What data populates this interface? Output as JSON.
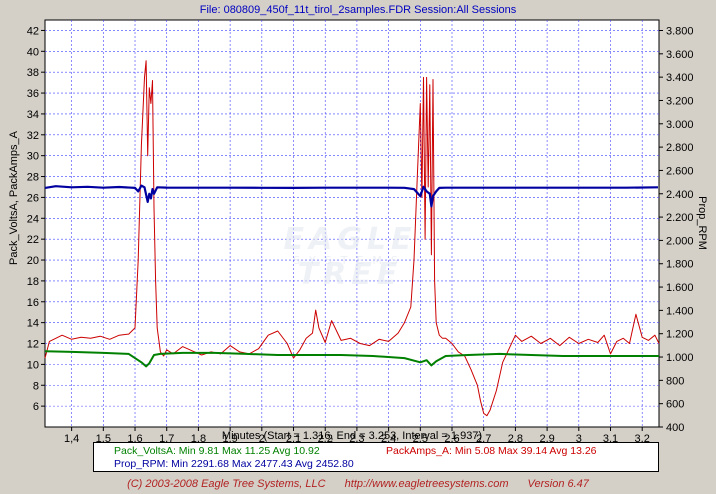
{
  "window_title": "File: 080809_450f_11t_tirol_2samples.FDR   Session:All Sessions",
  "x_axis_title": "Minutes (Start = 1.316,  End = 3.253,  Interval = 1.937)",
  "left_axis_title": "Pack_VoltsA, PackAmps_A",
  "right_axis_title": "Prop_RPM",
  "watermark": {
    "line1": "EAGLE TREE",
    "line2": "SYSTEMS"
  },
  "legend": {
    "volts": "Pack_VoltsA:  Min 9.81   Max 11.25   Avg 10.92",
    "amps": "PackAmps_A:   Min 5.08   Max 39.14   Avg 13.26",
    "rpm": "Prop_RPM:  Min 2291.68   Max 2477.43   Avg 2452.80"
  },
  "footer": {
    "copyright": "(C) 2003-2008 Eagle Tree Systems, LLC",
    "url": "http://www.eagletreesystems.com",
    "version": "Version 6.47"
  },
  "colors": {
    "amps": "#cc0000",
    "volts": "#008000",
    "rpm": "#0000a0",
    "title": "#0000c0"
  },
  "chart_data": {
    "type": "line",
    "x_ticks": [
      "1,4",
      "1,5",
      "1,6",
      "1,7",
      "1,8",
      "1,9",
      "2",
      "2,1",
      "2,2",
      "2,3",
      "2,4",
      "2,5",
      "2,6",
      "2,7",
      "2,8",
      "2,9",
      "3",
      "3,1",
      "3,2"
    ],
    "x_tick_values": [
      1.4,
      1.5,
      1.6,
      1.7,
      1.8,
      1.9,
      2.0,
      2.1,
      2.2,
      2.3,
      2.4,
      2.5,
      2.6,
      2.7,
      2.8,
      2.9,
      3.0,
      3.1,
      3.2
    ],
    "xlim": [
      1.316,
      3.253
    ],
    "y_left_ticks": [
      "6",
      "8",
      "10",
      "12",
      "14",
      "16",
      "18",
      "20",
      "22",
      "24",
      "26",
      "28",
      "30",
      "32",
      "34",
      "36",
      "38",
      "40",
      "42"
    ],
    "ylim_left": [
      4,
      43
    ],
    "y_right_ticks": [
      "400",
      "600",
      "800",
      "1.000",
      "1.200",
      "1.400",
      "1.600",
      "1.800",
      "2.000",
      "2.200",
      "2.400",
      "2.600",
      "2.800",
      "3.000",
      "3.200",
      "3.400",
      "3.600",
      "3.800"
    ],
    "y_right_tick_values": [
      400,
      600,
      800,
      1000,
      1200,
      1400,
      1600,
      1800,
      2000,
      2200,
      2400,
      2600,
      2800,
      3000,
      3200,
      3400,
      3600,
      3800
    ],
    "ylim_right": [
      400,
      3890
    ],
    "grid": true,
    "series": [
      {
        "name": "PackAmps_A",
        "axis": "left",
        "x": [
          1.316,
          1.33,
          1.35,
          1.37,
          1.4,
          1.43,
          1.46,
          1.49,
          1.52,
          1.55,
          1.58,
          1.6,
          1.61,
          1.62,
          1.63,
          1.635,
          1.64,
          1.645,
          1.65,
          1.655,
          1.66,
          1.665,
          1.67,
          1.68,
          1.69,
          1.7,
          1.72,
          1.75,
          1.78,
          1.81,
          1.84,
          1.87,
          1.9,
          1.93,
          1.96,
          1.99,
          2.02,
          2.05,
          2.08,
          2.1,
          2.12,
          2.14,
          2.16,
          2.17,
          2.18,
          2.2,
          2.22,
          2.25,
          2.28,
          2.31,
          2.34,
          2.37,
          2.4,
          2.43,
          2.45,
          2.47,
          2.48,
          2.49,
          2.5,
          2.505,
          2.51,
          2.515,
          2.52,
          2.525,
          2.53,
          2.535,
          2.54,
          2.545,
          2.55,
          2.56,
          2.57,
          2.58,
          2.6,
          2.62,
          2.64,
          2.66,
          2.68,
          2.69,
          2.7,
          2.71,
          2.72,
          2.74,
          2.76,
          2.78,
          2.8,
          2.82,
          2.85,
          2.88,
          2.91,
          2.94,
          2.97,
          3.0,
          3.03,
          3.06,
          3.08,
          3.1,
          3.12,
          3.14,
          3.16,
          3.18,
          3.2,
          3.22,
          3.24,
          3.253
        ],
        "y": [
          10.6,
          12.2,
          12.5,
          12.8,
          12.4,
          12.6,
          12.5,
          12.7,
          12.4,
          12.8,
          12.9,
          13.5,
          20.0,
          31.0,
          37.5,
          39.1,
          30.0,
          36.5,
          35.0,
          37.2,
          25.0,
          18.0,
          13.5,
          11.2,
          10.8,
          11.4,
          11.0,
          11.7,
          11.3,
          10.9,
          11.2,
          11.0,
          11.8,
          11.2,
          11.0,
          11.5,
          12.8,
          13.2,
          12.0,
          10.6,
          11.4,
          12.5,
          13.0,
          15.2,
          13.5,
          12.1,
          14.2,
          12.3,
          12.5,
          12.0,
          11.8,
          12.4,
          12.2,
          13.0,
          14.0,
          15.5,
          20.0,
          27.5,
          35.0,
          26.0,
          37.5,
          22.0,
          37.5,
          27.0,
          36.8,
          20.5,
          37.3,
          18.0,
          14.0,
          12.8,
          12.5,
          12.5,
          12.0,
          11.2,
          10.8,
          9.5,
          8.0,
          6.5,
          5.3,
          5.08,
          5.6,
          7.5,
          10.2,
          11.5,
          12.8,
          12.2,
          12.7,
          12.0,
          12.5,
          11.8,
          12.6,
          12.0,
          12.4,
          12.1,
          12.8,
          11.0,
          12.2,
          12.5,
          12.0,
          14.8,
          12.6,
          12.3,
          12.8,
          12.0
        ]
      },
      {
        "name": "Pack_VoltsA",
        "axis": "left",
        "x": [
          1.316,
          1.4,
          1.5,
          1.58,
          1.62,
          1.635,
          1.645,
          1.66,
          1.68,
          1.75,
          1.85,
          1.95,
          2.05,
          2.15,
          2.25,
          2.35,
          2.45,
          2.5,
          2.52,
          2.535,
          2.55,
          2.58,
          2.65,
          2.75,
          2.85,
          2.95,
          3.05,
          3.15,
          3.253
        ],
        "y": [
          11.25,
          11.2,
          11.1,
          11.0,
          10.2,
          9.81,
          10.1,
          10.9,
          11.0,
          11.1,
          11.1,
          11.0,
          10.9,
          10.9,
          10.9,
          10.8,
          10.6,
          10.2,
          10.4,
          9.9,
          10.3,
          10.8,
          10.9,
          11.0,
          10.9,
          10.8,
          10.8,
          10.8,
          10.8
        ]
      },
      {
        "name": "Prop_RPM",
        "axis": "right",
        "x": [
          1.316,
          1.35,
          1.4,
          1.45,
          1.5,
          1.55,
          1.6,
          1.61,
          1.62,
          1.63,
          1.64,
          1.645,
          1.65,
          1.655,
          1.66,
          1.67,
          1.7,
          1.8,
          1.9,
          2.0,
          2.1,
          2.2,
          2.3,
          2.4,
          2.45,
          2.48,
          2.5,
          2.51,
          2.52,
          2.53,
          2.535,
          2.54,
          2.55,
          2.56,
          2.58,
          2.65,
          2.75,
          2.85,
          2.95,
          3.05,
          3.15,
          3.25
        ],
        "y": [
          2450,
          2465,
          2455,
          2460,
          2452,
          2458,
          2450,
          2420,
          2470,
          2455,
          2330,
          2400,
          2360,
          2440,
          2400,
          2455,
          2453,
          2452,
          2452,
          2451,
          2450,
          2452,
          2452,
          2452,
          2451,
          2440,
          2380,
          2460,
          2420,
          2400,
          2291.68,
          2380,
          2420,
          2450,
          2452,
          2452,
          2452,
          2452,
          2452,
          2452,
          2452,
          2455
        ]
      }
    ]
  }
}
